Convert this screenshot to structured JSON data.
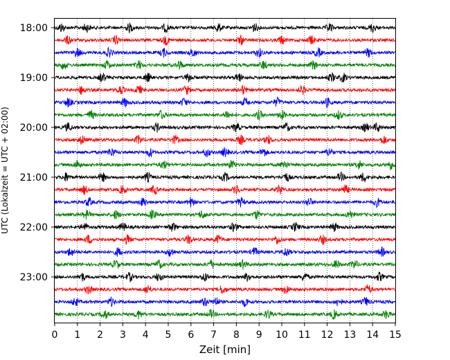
{
  "chart_data": {
    "type": "line",
    "title": "",
    "xlabel": "Zeit  [min]",
    "ylabel": "UTC (Lokalzeit = UTC + 02:00)",
    "xlim": [
      0,
      15
    ],
    "x_ticks": [
      "0",
      "1",
      "2",
      "3",
      "4",
      "5",
      "6",
      "7",
      "8",
      "9",
      "10",
      "11",
      "12",
      "13",
      "14",
      "15"
    ],
    "y_ticks": [
      {
        "label": "18:00",
        "row": 0
      },
      {
        "label": "19:00",
        "row": 4
      },
      {
        "label": "20:00",
        "row": 8
      },
      {
        "label": "21:00",
        "row": 12
      },
      {
        "label": "22:00",
        "row": 16
      },
      {
        "label": "23:00",
        "row": 20
      }
    ],
    "grid": "vertical-dotted",
    "row_minutes": 15,
    "row_colors": [
      "#000000",
      "#ff0000",
      "#0000ff",
      "#008000"
    ],
    "rows": [
      {
        "start": "18:00",
        "events": [
          0.3,
          1.4,
          3.3,
          4.9,
          7.2,
          8.8,
          12.1,
          14.0
        ]
      },
      {
        "start": "18:15",
        "events": [
          0.6,
          2.7,
          4.9,
          8.2,
          10.0,
          11.3
        ]
      },
      {
        "start": "18:30",
        "events": [
          1.0,
          2.4,
          4.8,
          6.1,
          9.0,
          11.6,
          13.8
        ]
      },
      {
        "start": "18:45",
        "events": [
          0.4,
          2.3,
          3.7,
          5.5,
          9.2,
          11.4
        ]
      },
      {
        "start": "19:00",
        "events": [
          2.1,
          4.1,
          5.9,
          8.1,
          12.2,
          12.7
        ]
      },
      {
        "start": "19:15",
        "events": [
          1.2,
          2.9,
          3.7,
          5.8,
          8.3,
          10.9
        ]
      },
      {
        "start": "19:30",
        "events": [
          0.6,
          3.1,
          5.7,
          8.4,
          9.8,
          12.0
        ]
      },
      {
        "start": "19:45",
        "events": [
          1.6,
          4.7,
          7.6,
          9.0,
          10.0,
          12.5
        ]
      },
      {
        "start": "20:00",
        "events": [
          0.6,
          4.5,
          8.0,
          10.2,
          13.7,
          14.2
        ]
      },
      {
        "start": "20:15",
        "events": [
          1.2,
          3.7,
          5.3,
          8.2,
          9.4,
          14.5
        ]
      },
      {
        "start": "20:30",
        "events": [
          2.5,
          4.2,
          6.7,
          7.5,
          9.2,
          12.1
        ]
      },
      {
        "start": "20:45",
        "events": [
          1.0,
          4.8,
          7.8,
          10.1,
          13.4,
          14.8
        ]
      },
      {
        "start": "21:00",
        "events": [
          0.5,
          2.1,
          4.1,
          7.5,
          10.2,
          12.6,
          13.6
        ]
      },
      {
        "start": "21:15",
        "events": [
          1.3,
          3.0,
          4.4,
          8.0,
          9.9,
          12.8
        ]
      },
      {
        "start": "21:30",
        "events": [
          1.5,
          3.9,
          6.0,
          8.2,
          11.2,
          14.2
        ]
      },
      {
        "start": "21:45",
        "events": [
          1.4,
          2.7,
          4.3,
          6.5,
          8.9,
          13.0
        ]
      },
      {
        "start": "22:00",
        "events": [
          1.3,
          3.0,
          5.2,
          7.9,
          10.6,
          12.3
        ]
      },
      {
        "start": "22:15",
        "events": [
          1.5,
          3.2,
          5.9,
          7.2,
          9.8,
          11.8
        ]
      },
      {
        "start": "22:30",
        "events": [
          0.7,
          2.8,
          5.1,
          8.8,
          10.2,
          14.4
        ]
      },
      {
        "start": "22:45",
        "events": [
          2.7,
          4.6,
          6.9,
          8.3,
          12.4,
          13.2
        ]
      },
      {
        "start": "23:00",
        "events": [
          1.2,
          3.3,
          4.6,
          6.6,
          8.5,
          11.0,
          14.3
        ]
      },
      {
        "start": "23:15",
        "events": [
          1.5,
          4.1,
          7.4,
          10.2,
          13.8
        ]
      },
      {
        "start": "23:30",
        "events": [
          0.9,
          2.5,
          6.6,
          7.1,
          8.4,
          12.5,
          13.7
        ]
      },
      {
        "start": "23:45",
        "events": [
          2.2,
          3.7,
          6.9,
          9.4,
          12.3,
          14.6
        ]
      }
    ]
  }
}
